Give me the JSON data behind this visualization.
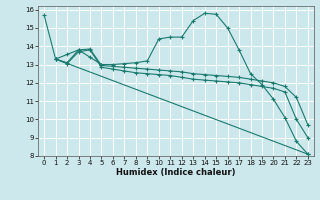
{
  "xlabel": "Humidex (Indice chaleur)",
  "bg_color": "#cce8ec",
  "grid_color": "#ffffff",
  "line_color": "#1a7a6e",
  "xlim": [
    -0.5,
    23.5
  ],
  "ylim": [
    8,
    16.2
  ],
  "xticks": [
    0,
    1,
    2,
    3,
    4,
    5,
    6,
    7,
    8,
    9,
    10,
    11,
    12,
    13,
    14,
    15,
    16,
    17,
    18,
    19,
    20,
    21,
    22,
    23
  ],
  "yticks": [
    8,
    9,
    10,
    11,
    12,
    13,
    14,
    15,
    16
  ],
  "line1_x": [
    0,
    1,
    2,
    3,
    4,
    5,
    6,
    7,
    8,
    9,
    10,
    11,
    12,
    13,
    14,
    15,
    16,
    17,
    18,
    19,
    20,
    21,
    22,
    23
  ],
  "line1_y": [
    15.7,
    13.3,
    13.55,
    13.8,
    13.4,
    13.0,
    13.0,
    13.05,
    13.1,
    13.2,
    14.4,
    14.5,
    14.5,
    15.4,
    15.8,
    15.75,
    15.0,
    13.8,
    12.5,
    11.9,
    11.1,
    10.1,
    8.8,
    8.1
  ],
  "line2_x": [
    1,
    2,
    3,
    4,
    5,
    6,
    7,
    8,
    9,
    10,
    11,
    12,
    13,
    14,
    15,
    16,
    17,
    18,
    19,
    20,
    21,
    22,
    23
  ],
  "line2_y": [
    13.3,
    13.1,
    13.8,
    13.85,
    12.95,
    12.9,
    12.85,
    12.8,
    12.75,
    12.7,
    12.65,
    12.6,
    12.5,
    12.45,
    12.4,
    12.35,
    12.3,
    12.2,
    12.1,
    12.0,
    11.8,
    11.2,
    9.7
  ],
  "line3_x": [
    1,
    2,
    3,
    4,
    5,
    6,
    7,
    8,
    9,
    10,
    11,
    12,
    13,
    14,
    15,
    16,
    17,
    18,
    19,
    20,
    21,
    22,
    23
  ],
  "line3_y": [
    13.3,
    13.05,
    13.7,
    13.8,
    12.85,
    12.75,
    12.65,
    12.55,
    12.5,
    12.45,
    12.4,
    12.3,
    12.2,
    12.15,
    12.1,
    12.05,
    12.0,
    11.9,
    11.8,
    11.7,
    11.5,
    10.0,
    9.0
  ],
  "line4_x": [
    1,
    23
  ],
  "line4_y": [
    13.3,
    8.1
  ],
  "xlabel_fontsize": 6.0,
  "tick_fontsize": 5.0
}
